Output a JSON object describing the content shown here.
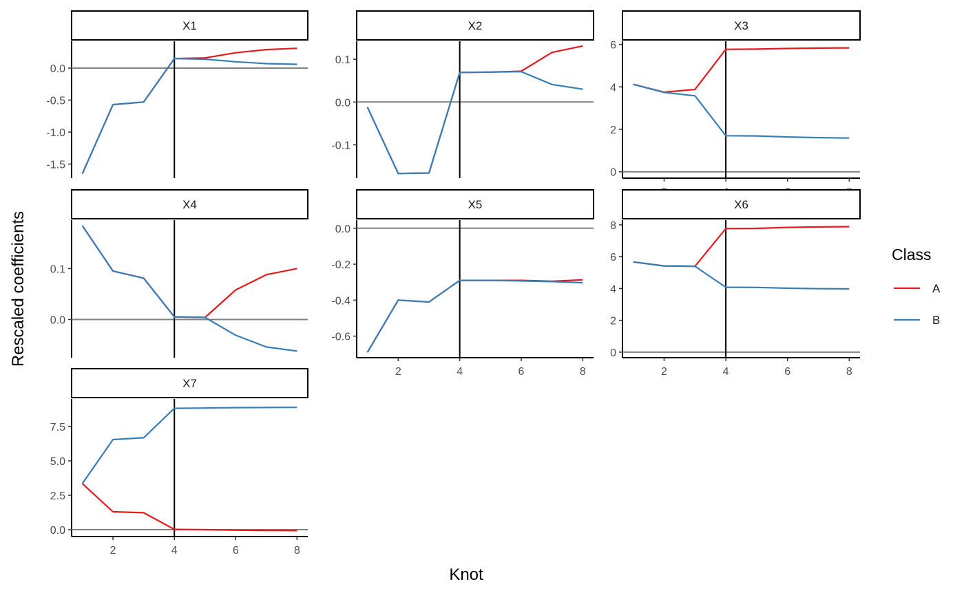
{
  "chart_data": {
    "type": "line",
    "facet_layout": "wrap-3-columns",
    "xlabel": "Knot",
    "ylabel": "Rescaled coefficients",
    "x": [
      1,
      2,
      3,
      4,
      5,
      6,
      7,
      8
    ],
    "xticks": [
      2,
      4,
      6,
      8
    ],
    "xlim": [
      0.65,
      8.35
    ],
    "vline_x": 4,
    "hline_y": 0,
    "grid": false,
    "legend": {
      "title": "Class",
      "placement": "right",
      "entries": [
        {
          "name": "A",
          "color": "#e41a1c"
        },
        {
          "name": "B",
          "color": "#377eb8"
        }
      ]
    },
    "panels": [
      {
        "label": "X1",
        "ylim": [
          -1.72,
          0.42
        ],
        "yticks": [
          0.0,
          -0.5,
          -1.0,
          -1.5
        ],
        "ytick_labels": [
          "0.0",
          "-0.5",
          "-1.0",
          "-1.5"
        ],
        "series": [
          {
            "name": "A",
            "values": [
              -1.65,
              -0.57,
              -0.53,
              0.15,
              0.16,
              0.24,
              0.29,
              0.31
            ]
          },
          {
            "name": "B",
            "values": [
              -1.65,
              -0.57,
              -0.53,
              0.15,
              0.14,
              0.1,
              0.07,
              0.06
            ]
          }
        ]
      },
      {
        "label": "X2",
        "ylim": [
          -0.178,
          0.142
        ],
        "yticks": [
          0.1,
          0.0,
          -0.1
        ],
        "ytick_labels": [
          "0.1",
          "0.0",
          "-0.1"
        ],
        "series": [
          {
            "name": "A",
            "values": [
              -0.012,
              -0.167,
              -0.166,
              0.069,
              0.07,
              0.072,
              0.116,
              0.131
            ]
          },
          {
            "name": "B",
            "values": [
              -0.012,
              -0.167,
              -0.166,
              0.069,
              0.07,
              0.071,
              0.041,
              0.03
            ]
          }
        ]
      },
      {
        "label": "X3",
        "ylim": [
          -0.3,
          6.15
        ],
        "yticks": [
          6,
          4,
          2,
          0
        ],
        "ytick_labels": [
          "6",
          "4",
          "2",
          "0"
        ],
        "series": [
          {
            "name": "A",
            "values": [
              4.12,
              3.75,
              3.88,
              5.77,
              5.78,
              5.81,
              5.83,
              5.84
            ]
          },
          {
            "name": "B",
            "values": [
              4.12,
              3.74,
              3.58,
              1.7,
              1.69,
              1.64,
              1.61,
              1.59
            ]
          }
        ]
      },
      {
        "label": "X4",
        "ylim": [
          -0.075,
          0.195
        ],
        "yticks": [
          0.1,
          0.0
        ],
        "ytick_labels": [
          "0.1",
          "0.0"
        ],
        "series": [
          {
            "name": "A",
            "values": [
              0.184,
              0.095,
              0.081,
              0.005,
              0.004,
              0.058,
              0.088,
              0.1
            ]
          },
          {
            "name": "B",
            "values": [
              0.184,
              0.095,
              0.081,
              0.005,
              0.004,
              -0.031,
              -0.054,
              -0.062
            ]
          }
        ]
      },
      {
        "label": "X5",
        "ylim": [
          -0.72,
          0.045
        ],
        "yticks": [
          0.0,
          -0.2,
          -0.4,
          -0.6
        ],
        "ytick_labels": [
          "0.0",
          "-0.2",
          "-0.4",
          "-0.6"
        ],
        "series": [
          {
            "name": "A",
            "values": [
              -0.69,
              -0.4,
              -0.41,
              -0.29,
              -0.29,
              -0.29,
              -0.295,
              -0.287
            ]
          },
          {
            "name": "B",
            "values": [
              -0.69,
              -0.4,
              -0.41,
              -0.29,
              -0.29,
              -0.293,
              -0.297,
              -0.303
            ]
          }
        ]
      },
      {
        "label": "X6",
        "ylim": [
          -0.35,
          8.3
        ],
        "yticks": [
          8,
          6,
          4,
          2,
          0
        ],
        "ytick_labels": [
          "8",
          "6",
          "4",
          "2",
          "0"
        ],
        "series": [
          {
            "name": "A",
            "values": [
              5.67,
              5.42,
              5.4,
              7.77,
              7.78,
              7.84,
              7.87,
              7.89
            ]
          },
          {
            "name": "B",
            "values": [
              5.67,
              5.42,
              5.4,
              4.08,
              4.07,
              4.02,
              3.99,
              3.98
            ]
          }
        ]
      },
      {
        "label": "X7",
        "ylim": [
          -0.5,
          9.5
        ],
        "yticks": [
          7.5,
          5.0,
          2.5,
          0.0
        ],
        "ytick_labels": [
          "7.5",
          "5.0",
          "2.5",
          "0.0"
        ],
        "series": [
          {
            "name": "A",
            "values": [
              3.35,
              1.3,
              1.23,
              0.02,
              0.0,
              -0.04,
              -0.06,
              -0.07
            ]
          },
          {
            "name": "B",
            "values": [
              3.35,
              6.55,
              6.68,
              8.82,
              8.84,
              8.87,
              8.88,
              8.89
            ]
          }
        ]
      }
    ]
  }
}
